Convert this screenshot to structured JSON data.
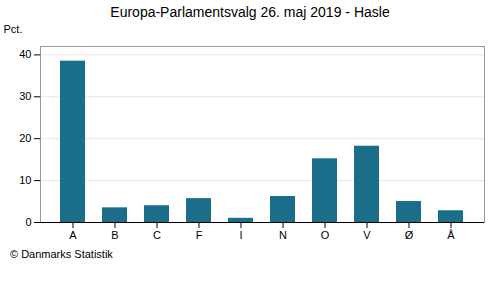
{
  "chart_data": {
    "type": "bar",
    "title": "Europa-Parlamentsvalg 26. maj 2019 - Hasle",
    "categories": [
      "A",
      "B",
      "C",
      "F",
      "I",
      "N",
      "O",
      "V",
      "Ø",
      "Å"
    ],
    "values": [
      38.5,
      3.5,
      4.0,
      5.7,
      1.0,
      6.2,
      15.2,
      18.2,
      5.0,
      2.8
    ],
    "color": "#1a6e8a",
    "ylabel": "Pct.",
    "ylim": [
      0,
      42
    ],
    "yticks": [
      0,
      10,
      20,
      30,
      40
    ],
    "grid": true,
    "annotations": [
      "© Danmarks Statistik"
    ]
  }
}
